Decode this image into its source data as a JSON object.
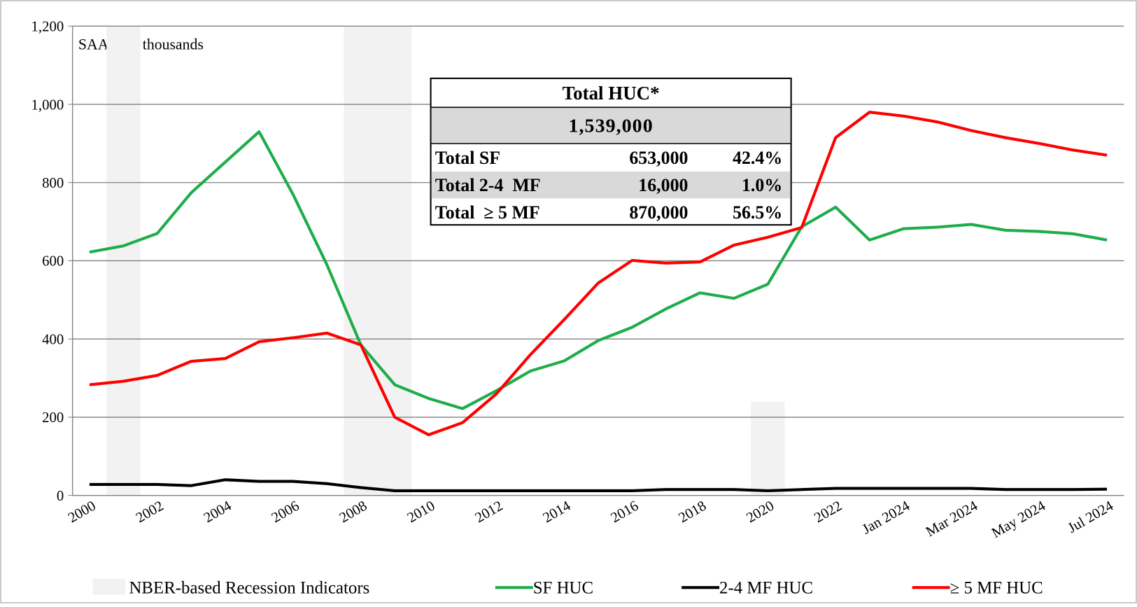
{
  "chart_data": {
    "type": "line",
    "annotation": "SAAR; in thousands",
    "categories": [
      "2000",
      null,
      "2002",
      null,
      "2004",
      null,
      "2006",
      null,
      "2008",
      null,
      "2010",
      null,
      "2012",
      null,
      "2014",
      null,
      "2016",
      null,
      "2018",
      null,
      "2020",
      null,
      "2022",
      null,
      "Jan 2024",
      null,
      "Mar 2024",
      null,
      "May 2024",
      null,
      "Jul 2024"
    ],
    "ylim": [
      0,
      1200
    ],
    "yticks": [
      0,
      200,
      400,
      600,
      800,
      {
        "value": 1000,
        "label": "1,000"
      },
      {
        "value": 1200,
        "label": "1,200"
      }
    ],
    "grid": true,
    "recessions": {
      "name": "NBER-based Recession Indicators",
      "color": "#f2f2f2",
      "values": [
        null,
        1200,
        null,
        null,
        null,
        null,
        null,
        null,
        1200,
        1200,
        null,
        null,
        null,
        null,
        null,
        null,
        null,
        null,
        null,
        null,
        240,
        null,
        null,
        null,
        null,
        null,
        null,
        null,
        null,
        null,
        null
      ]
    },
    "series": [
      {
        "name": "SF HUC",
        "color": "#1fad4b",
        "values": [
          622,
          638,
          670,
          774,
          852,
          930,
          770,
          590,
          385,
          283,
          248,
          222,
          268,
          318,
          344,
          396,
          430,
          477,
          518,
          504,
          540,
          687,
          737,
          653,
          682,
          686,
          693,
          678,
          675,
          669,
          653
        ]
      },
      {
        "name": "2-4 MF HUC",
        "color": "#000000",
        "values": [
          28,
          28,
          28,
          25,
          40,
          36,
          36,
          30,
          20,
          12,
          12,
          12,
          12,
          12,
          12,
          12,
          12,
          15,
          15,
          15,
          12,
          15,
          18,
          18,
          18,
          18,
          18,
          15,
          15,
          15,
          16
        ]
      },
      {
        "name": "≥ 5 MF HUC",
        "color": "#ff0000",
        "values": [
          283,
          292,
          307,
          343,
          350,
          393,
          403,
          415,
          385,
          200,
          155,
          186,
          260,
          360,
          450,
          543,
          601,
          594,
          597,
          640,
          660,
          685,
          915,
          980,
          970,
          955,
          933,
          915,
          900,
          883,
          870
        ]
      }
    ],
    "table": {
      "title": "Total HUC*",
      "total": "1,539,000",
      "rows": [
        [
          "Total SF",
          "653,000",
          "42.4%"
        ],
        [
          "Total 2-4  MF",
          "16,000",
          "1.0%"
        ],
        [
          "Total  ≥ 5 MF",
          "870,000",
          "56.5%"
        ]
      ]
    }
  }
}
